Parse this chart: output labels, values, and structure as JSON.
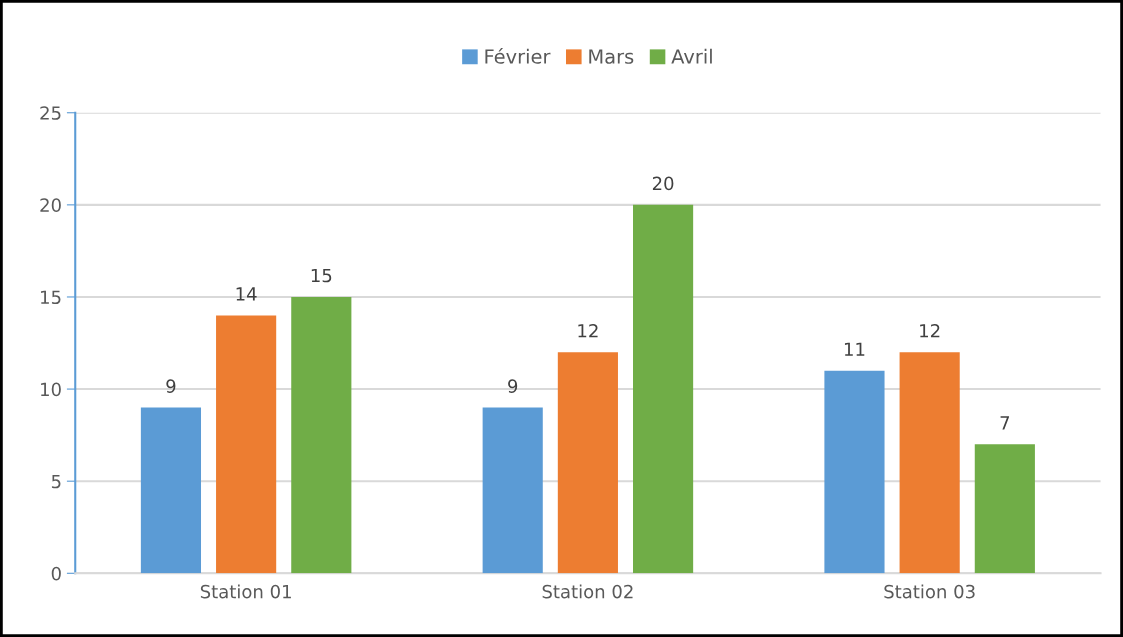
{
  "chart_data": {
    "type": "bar",
    "categories": [
      "Station 01",
      "Station 02",
      "Station 03"
    ],
    "series": [
      {
        "name": "Février",
        "color": "#5b9bd5",
        "values": [
          9,
          9,
          11
        ]
      },
      {
        "name": "Mars",
        "color": "#ed7d31",
        "values": [
          14,
          12,
          12
        ]
      },
      {
        "name": "Avril",
        "color": "#70ad47",
        "values": [
          15,
          20,
          7
        ]
      }
    ],
    "ylim": [
      0,
      25
    ],
    "yticks": [
      0,
      5,
      10,
      15,
      20,
      25
    ],
    "grid": "y",
    "legend": "top",
    "data_labels": true
  }
}
